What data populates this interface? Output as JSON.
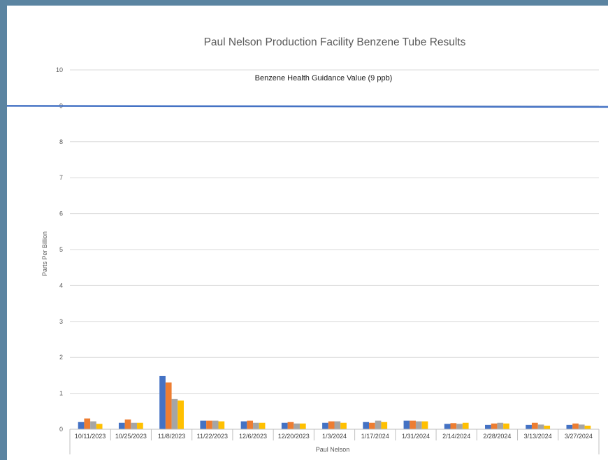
{
  "chart_data": {
    "type": "bar",
    "title": "Paul Nelson Production Facility Benzene Tube Results",
    "ylabel": "Parts Per Billion",
    "xgroup_label": "Paul Nelson",
    "ylim": [
      0,
      10
    ],
    "yticks": [
      0,
      1,
      2,
      3,
      4,
      5,
      6,
      7,
      8,
      9,
      10
    ],
    "grid": true,
    "categories": [
      "10/11/2023",
      "10/25/2023",
      "11/8/2023",
      "11/22/2023",
      "12/6/2023",
      "12/20/2023",
      "1/3/2024",
      "1/17/2024",
      "1/31/2024",
      "2/14/2024",
      "2/28/2024",
      "3/13/2024",
      "3/27/2024"
    ],
    "series": [
      {
        "color": "#4472c4",
        "values": [
          0.2,
          0.18,
          1.48,
          0.24,
          0.22,
          0.18,
          0.18,
          0.2,
          0.24,
          0.15,
          0.12,
          0.12,
          0.12
        ]
      },
      {
        "color": "#ed7d31",
        "values": [
          0.3,
          0.27,
          1.3,
          0.24,
          0.24,
          0.2,
          0.22,
          0.18,
          0.24,
          0.17,
          0.16,
          0.18,
          0.16
        ]
      },
      {
        "color": "#a5a5a5",
        "values": [
          0.22,
          0.18,
          0.84,
          0.24,
          0.18,
          0.16,
          0.22,
          0.24,
          0.22,
          0.15,
          0.18,
          0.13,
          0.13
        ]
      },
      {
        "color": "#ffc000",
        "values": [
          0.15,
          0.18,
          0.8,
          0.22,
          0.18,
          0.16,
          0.18,
          0.2,
          0.22,
          0.18,
          0.16,
          0.1,
          0.1
        ]
      }
    ],
    "reference_line": {
      "value": 9,
      "label": "Benzene Health Guidance Value (9 ppb)",
      "color": "#4472c4"
    }
  }
}
